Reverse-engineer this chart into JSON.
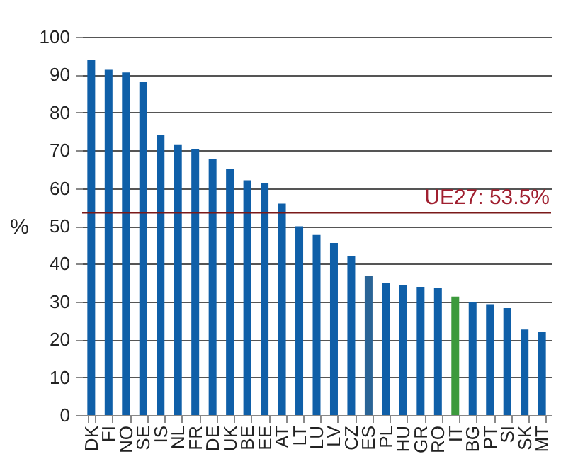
{
  "chart_data": {
    "type": "bar",
    "ylabel": "%",
    "categories": [
      "DK",
      "FI",
      "NO",
      "SE",
      "IS",
      "NL",
      "FR",
      "DE",
      "UK",
      "BE",
      "EE",
      "AT",
      "LT",
      "LU",
      "LV",
      "CZ",
      "ES",
      "PL",
      "HU",
      "GR",
      "RO",
      "IT",
      "BG",
      "PT",
      "SI",
      "SK",
      "MT"
    ],
    "values": [
      94.0,
      91.3,
      90.6,
      88.0,
      74.1,
      71.6,
      70.4,
      67.8,
      65.1,
      62.1,
      61.3,
      55.9,
      49.9,
      47.6,
      45.5,
      42.1,
      36.9,
      35.0,
      34.3,
      33.9,
      33.5,
      31.3,
      29.9,
      29.3,
      28.3,
      22.6,
      21.9
    ],
    "colors": [
      "#0f5fa8",
      "#0f5fa8",
      "#0f5fa8",
      "#0f5fa8",
      "#0f5fa8",
      "#0f5fa8",
      "#0f5fa8",
      "#0f5fa8",
      "#0f5fa8",
      "#0f5fa8",
      "#0f5fa8",
      "#0f5fa8",
      "#0f5fa8",
      "#0f5fa8",
      "#0f5fa8",
      "#0f5fa8",
      "#2a6496",
      "#0f5fa8",
      "#0f5fa8",
      "#0f5fa8",
      "#0f5fa8",
      "#3c9a3c",
      "#0f5fa8",
      "#0f5fa8",
      "#0f5fa8",
      "#0f5fa8",
      "#0f5fa8"
    ],
    "ylim": [
      0,
      100
    ],
    "yticks": [
      0,
      10,
      20,
      30,
      40,
      50,
      60,
      70,
      80,
      90,
      100
    ],
    "grid": "y",
    "ref_lines": [
      {
        "axis": "y",
        "value": 53.5,
        "label": "UE27: 53.5%",
        "color": "#7a1a1a"
      }
    ]
  }
}
